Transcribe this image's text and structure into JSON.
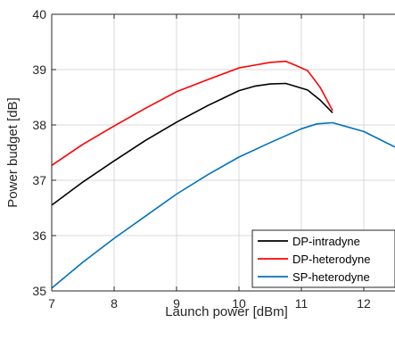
{
  "chart_data": {
    "type": "line",
    "title": "",
    "xlabel": "Launch power [dBm]",
    "ylabel": "Power budget [dB]",
    "xlim": [
      7,
      12.5
    ],
    "ylim": [
      35,
      40
    ],
    "xticks": [
      7,
      8,
      9,
      10,
      11,
      12
    ],
    "yticks": [
      35,
      36,
      37,
      38,
      39,
      40
    ],
    "xtick_labels": [
      "7",
      "8",
      "9",
      "10",
      "11",
      "12"
    ],
    "ytick_labels": [
      "35",
      "36",
      "37",
      "38",
      "39",
      "40"
    ],
    "grid": true,
    "legend_position": "bottom-right",
    "series": [
      {
        "name": "DP-intradyne",
        "color": "#000000",
        "x": [
          7.0,
          7.5,
          8.0,
          8.5,
          9.0,
          9.5,
          10.0,
          10.25,
          10.5,
          10.75,
          10.9,
          11.1,
          11.3,
          11.5
        ],
        "y": [
          36.55,
          36.97,
          37.35,
          37.72,
          38.05,
          38.35,
          38.62,
          38.7,
          38.74,
          38.75,
          38.7,
          38.63,
          38.45,
          38.22
        ]
      },
      {
        "name": "DP-heterodyne",
        "color": "#ff0000",
        "x": [
          7.0,
          7.5,
          8.0,
          8.5,
          9.0,
          9.5,
          10.0,
          10.25,
          10.5,
          10.75,
          10.9,
          11.1,
          11.3,
          11.5
        ],
        "y": [
          37.27,
          37.65,
          37.98,
          38.3,
          38.6,
          38.82,
          39.03,
          39.08,
          39.13,
          39.15,
          39.08,
          38.98,
          38.68,
          38.26
        ]
      },
      {
        "name": "SP-heterodyne",
        "color": "#0072bd",
        "x": [
          7.0,
          7.5,
          8.0,
          8.5,
          9.0,
          9.5,
          10.0,
          10.5,
          11.0,
          11.25,
          11.5,
          12.0,
          12.5
        ],
        "y": [
          35.05,
          35.52,
          35.95,
          36.35,
          36.75,
          37.1,
          37.42,
          37.68,
          37.93,
          38.02,
          38.04,
          37.88,
          37.6
        ]
      }
    ]
  }
}
